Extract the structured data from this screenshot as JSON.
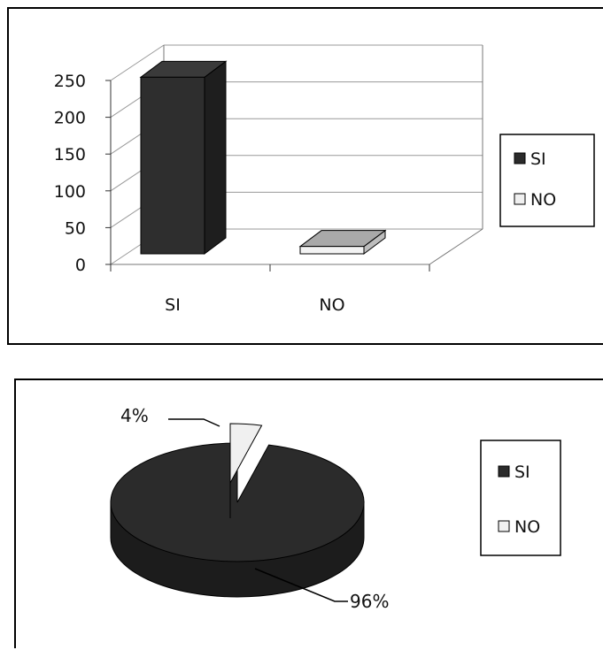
{
  "chart_data": [
    {
      "type": "bar",
      "categories": [
        "SI",
        "NO"
      ],
      "values": [
        240,
        10
      ],
      "ylim": [
        0,
        250
      ],
      "yticks": [
        "0",
        "50",
        "100",
        "150",
        "200",
        "250"
      ],
      "legend": [
        "SI",
        "NO"
      ],
      "legend_position": "right",
      "grid": true,
      "colors": [
        "#2b2b2b",
        "#f0f0f0"
      ]
    },
    {
      "type": "pie",
      "categories": [
        "SI",
        "NO"
      ],
      "values": [
        96,
        4
      ],
      "labels": [
        "96%",
        "4%"
      ],
      "legend": [
        "SI",
        "NO"
      ],
      "legend_position": "right",
      "colors": [
        "#2b2b2b",
        "#f0f0f0"
      ]
    }
  ]
}
